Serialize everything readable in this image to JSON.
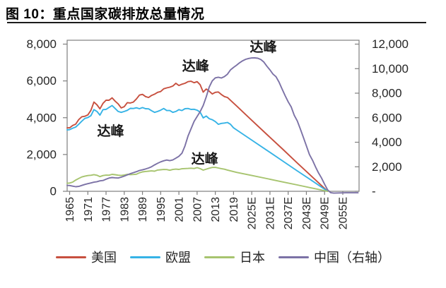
{
  "figure": {
    "title": "图 10：重点国家碳排放总量情况"
  },
  "chart_data": {
    "type": "line",
    "title": "图 10：重点国家碳排放总量情况",
    "grid": false,
    "legend_position": "bottom",
    "frame_color": "#7f7f7f",
    "tick_text_color": "#262626",
    "annotation_color": "#1a1a1a",
    "x_axis": {
      "labels": [
        "1965",
        "1971",
        "1977",
        "1983",
        "1989",
        "1995",
        "2001",
        "2007",
        "2013",
        "2019",
        "2025E",
        "2031E",
        "2037E",
        "2043E",
        "2049E",
        "2055E"
      ],
      "years": [
        1965,
        1971,
        1977,
        1983,
        1989,
        1995,
        2001,
        2007,
        2013,
        2019,
        2025,
        2031,
        2037,
        2043,
        2049,
        2055
      ]
    },
    "left_axis": {
      "min": 0,
      "max": 8000,
      "labels": [
        "8,000",
        "6,000",
        "4,000",
        "2,000",
        "0"
      ],
      "values": [
        8000,
        6000,
        4000,
        2000,
        0
      ]
    },
    "right_axis": {
      "min": 0,
      "max": 12000,
      "labels": [
        "12,000",
        "10,000",
        "8,000",
        "6,000",
        "4,000",
        "2,000",
        "-"
      ],
      "values": [
        12000,
        10000,
        8000,
        6000,
        4000,
        2000,
        0
      ]
    },
    "series": [
      {
        "name": "美国",
        "axis": "left",
        "color": "#c7503f",
        "points": [
          [
            1964,
            3450
          ],
          [
            1965,
            3450
          ],
          [
            1966,
            3580
          ],
          [
            1967,
            3650
          ],
          [
            1968,
            3900
          ],
          [
            1969,
            4050
          ],
          [
            1970,
            4080
          ],
          [
            1971,
            4150
          ],
          [
            1972,
            4400
          ],
          [
            1973,
            4850
          ],
          [
            1974,
            4700
          ],
          [
            1975,
            4480
          ],
          [
            1976,
            4780
          ],
          [
            1977,
            4950
          ],
          [
            1978,
            4950
          ],
          [
            1979,
            5080
          ],
          [
            1980,
            4900
          ],
          [
            1981,
            4750
          ],
          [
            1982,
            4530
          ],
          [
            1983,
            4600
          ],
          [
            1984,
            4820
          ],
          [
            1985,
            4800
          ],
          [
            1986,
            4850
          ],
          [
            1987,
            5020
          ],
          [
            1988,
            5230
          ],
          [
            1989,
            5270
          ],
          [
            1990,
            5150
          ],
          [
            1991,
            5100
          ],
          [
            1992,
            5210
          ],
          [
            1993,
            5280
          ],
          [
            1994,
            5380
          ],
          [
            1995,
            5420
          ],
          [
            1996,
            5570
          ],
          [
            1997,
            5620
          ],
          [
            1998,
            5660
          ],
          [
            1999,
            5720
          ],
          [
            2000,
            5870
          ],
          [
            2001,
            5750
          ],
          [
            2002,
            5820
          ],
          [
            2003,
            5870
          ],
          [
            2004,
            5960
          ],
          [
            2005,
            5980
          ],
          [
            2006,
            5900
          ],
          [
            2007,
            5960
          ],
          [
            2008,
            5790
          ],
          [
            2009,
            5390
          ],
          [
            2010,
            5560
          ],
          [
            2011,
            5440
          ],
          [
            2012,
            5290
          ],
          [
            2013,
            5380
          ],
          [
            2014,
            5400
          ],
          [
            2015,
            5260
          ],
          [
            2016,
            5150
          ],
          [
            2017,
            5100
          ],
          [
            2020,
            4640
          ],
          [
            2025,
            3860
          ],
          [
            2030,
            3090
          ],
          [
            2035,
            2320
          ],
          [
            2040,
            1540
          ],
          [
            2045,
            770
          ],
          [
            2050,
            0
          ]
        ]
      },
      {
        "name": "欧盟",
        "axis": "left",
        "color": "#36b3e6",
        "points": [
          [
            1964,
            3340
          ],
          [
            1965,
            3350
          ],
          [
            1966,
            3430
          ],
          [
            1967,
            3490
          ],
          [
            1968,
            3640
          ],
          [
            1969,
            3810
          ],
          [
            1970,
            3960
          ],
          [
            1971,
            4010
          ],
          [
            1972,
            4110
          ],
          [
            1973,
            4440
          ],
          [
            1974,
            4340
          ],
          [
            1975,
            4140
          ],
          [
            1976,
            4440
          ],
          [
            1977,
            4450
          ],
          [
            1978,
            4560
          ],
          [
            1979,
            4660
          ],
          [
            1980,
            4500
          ],
          [
            1981,
            4340
          ],
          [
            1982,
            4290
          ],
          [
            1983,
            4340
          ],
          [
            1984,
            4400
          ],
          [
            1985,
            4510
          ],
          [
            1986,
            4500
          ],
          [
            1987,
            4540
          ],
          [
            1988,
            4490
          ],
          [
            1989,
            4550
          ],
          [
            1990,
            4490
          ],
          [
            1991,
            4480
          ],
          [
            1992,
            4380
          ],
          [
            1993,
            4290
          ],
          [
            1994,
            4340
          ],
          [
            1995,
            4410
          ],
          [
            1996,
            4500
          ],
          [
            1997,
            4390
          ],
          [
            1998,
            4390
          ],
          [
            1999,
            4290
          ],
          [
            2000,
            4340
          ],
          [
            2001,
            4440
          ],
          [
            2002,
            4390
          ],
          [
            2003,
            4490
          ],
          [
            2004,
            4500
          ],
          [
            2005,
            4450
          ],
          [
            2006,
            4460
          ],
          [
            2007,
            4410
          ],
          [
            2008,
            4300
          ],
          [
            2009,
            3990
          ],
          [
            2010,
            4090
          ],
          [
            2011,
            3950
          ],
          [
            2012,
            3890
          ],
          [
            2013,
            3790
          ],
          [
            2014,
            3640
          ],
          [
            2015,
            3690
          ],
          [
            2016,
            3710
          ],
          [
            2017,
            3740
          ],
          [
            2018,
            3640
          ],
          [
            2019,
            3450
          ],
          [
            2020,
            3340
          ],
          [
            2025,
            2780
          ],
          [
            2030,
            2230
          ],
          [
            2035,
            1670
          ],
          [
            2040,
            1110
          ],
          [
            2045,
            560
          ],
          [
            2050,
            0
          ]
        ]
      },
      {
        "name": "日本",
        "axis": "left",
        "color": "#a7c46f",
        "points": [
          [
            1964,
            440
          ],
          [
            1965,
            450
          ],
          [
            1966,
            500
          ],
          [
            1967,
            610
          ],
          [
            1968,
            700
          ],
          [
            1969,
            780
          ],
          [
            1970,
            820
          ],
          [
            1971,
            855
          ],
          [
            1972,
            870
          ],
          [
            1973,
            905
          ],
          [
            1974,
            870
          ],
          [
            1975,
            800
          ],
          [
            1976,
            855
          ],
          [
            1977,
            880
          ],
          [
            1978,
            875
          ],
          [
            1979,
            920
          ],
          [
            1980,
            900
          ],
          [
            1981,
            875
          ],
          [
            1982,
            860
          ],
          [
            1983,
            885
          ],
          [
            1984,
            920
          ],
          [
            1985,
            905
          ],
          [
            1986,
            915
          ],
          [
            1987,
            930
          ],
          [
            1988,
            1005
          ],
          [
            1989,
            1055
          ],
          [
            1990,
            1080
          ],
          [
            1991,
            1095
          ],
          [
            1992,
            1110
          ],
          [
            1993,
            1095
          ],
          [
            1994,
            1155
          ],
          [
            1995,
            1170
          ],
          [
            1996,
            1185
          ],
          [
            1997,
            1180
          ],
          [
            1998,
            1145
          ],
          [
            1999,
            1185
          ],
          [
            2000,
            1205
          ],
          [
            2001,
            1190
          ],
          [
            2002,
            1225
          ],
          [
            2003,
            1235
          ],
          [
            2004,
            1245
          ],
          [
            2005,
            1255
          ],
          [
            2006,
            1240
          ],
          [
            2007,
            1285
          ],
          [
            2008,
            1230
          ],
          [
            2009,
            1150
          ],
          [
            2010,
            1205
          ],
          [
            2011,
            1255
          ],
          [
            2012,
            1295
          ],
          [
            2013,
            1300
          ],
          [
            2014,
            1265
          ],
          [
            2015,
            1230
          ],
          [
            2016,
            1200
          ],
          [
            2017,
            1155
          ],
          [
            2020,
            1030
          ],
          [
            2025,
            860
          ],
          [
            2030,
            690
          ],
          [
            2035,
            515
          ],
          [
            2040,
            345
          ],
          [
            2045,
            170
          ],
          [
            2050,
            0
          ]
        ]
      },
      {
        "name": "中国（右轴）",
        "axis": "right",
        "color": "#7c72a6",
        "points": [
          [
            1964,
            480
          ],
          [
            1965,
            470
          ],
          [
            1966,
            420
          ],
          [
            1967,
            375
          ],
          [
            1968,
            400
          ],
          [
            1969,
            480
          ],
          [
            1970,
            560
          ],
          [
            1971,
            620
          ],
          [
            1972,
            680
          ],
          [
            1973,
            740
          ],
          [
            1974,
            780
          ],
          [
            1975,
            850
          ],
          [
            1976,
            880
          ],
          [
            1977,
            985
          ],
          [
            1978,
            1080
          ],
          [
            1979,
            1120
          ],
          [
            1980,
            1100
          ],
          [
            1981,
            1080
          ],
          [
            1982,
            1150
          ],
          [
            1983,
            1235
          ],
          [
            1984,
            1335
          ],
          [
            1985,
            1440
          ],
          [
            1986,
            1520
          ],
          [
            1987,
            1600
          ],
          [
            1988,
            1700
          ],
          [
            1989,
            1750
          ],
          [
            1990,
            1820
          ],
          [
            1991,
            1900
          ],
          [
            1992,
            2005
          ],
          [
            1993,
            2150
          ],
          [
            1994,
            2285
          ],
          [
            1995,
            2400
          ],
          [
            1996,
            2485
          ],
          [
            1997,
            2550
          ],
          [
            1998,
            2500
          ],
          [
            1999,
            2555
          ],
          [
            2000,
            2700
          ],
          [
            2001,
            2855
          ],
          [
            2002,
            3100
          ],
          [
            2003,
            3700
          ],
          [
            2004,
            4500
          ],
          [
            2005,
            5100
          ],
          [
            2006,
            5700
          ],
          [
            2007,
            6100
          ],
          [
            2008,
            6500
          ],
          [
            2009,
            7000
          ],
          [
            2010,
            7700
          ],
          [
            2011,
            8500
          ],
          [
            2012,
            9000
          ],
          [
            2013,
            9250
          ],
          [
            2014,
            9300
          ],
          [
            2015,
            9240
          ],
          [
            2016,
            9350
          ],
          [
            2017,
            9550
          ],
          [
            2018,
            9900
          ],
          [
            2019,
            10100
          ],
          [
            2020,
            10280
          ],
          [
            2021,
            10480
          ],
          [
            2022,
            10640
          ],
          [
            2023,
            10760
          ],
          [
            2024,
            10830
          ],
          [
            2025,
            10870
          ],
          [
            2026,
            10880
          ],
          [
            2027,
            10850
          ],
          [
            2028,
            10740
          ],
          [
            2029,
            10540
          ],
          [
            2030,
            10200
          ],
          [
            2031,
            9900
          ],
          [
            2032,
            9560
          ],
          [
            2033,
            9340
          ],
          [
            2034,
            8900
          ],
          [
            2035,
            8340
          ],
          [
            2036,
            7800
          ],
          [
            2037,
            7300
          ],
          [
            2038,
            6880
          ],
          [
            2039,
            6200
          ],
          [
            2040,
            5740
          ],
          [
            2041,
            5080
          ],
          [
            2042,
            4400
          ],
          [
            2043,
            3700
          ],
          [
            2044,
            3000
          ],
          [
            2045,
            2540
          ],
          [
            2046,
            1990
          ],
          [
            2047,
            1500
          ],
          [
            2048,
            1080
          ],
          [
            2049,
            580
          ],
          [
            2050,
            120
          ],
          [
            2051,
            -110
          ],
          [
            2052,
            -150
          ],
          [
            2054,
            -130
          ],
          [
            2056,
            -120
          ],
          [
            2058,
            -120
          ],
          [
            2060,
            -120
          ]
        ]
      }
    ],
    "annotations": [
      {
        "label": "达峰",
        "axis": "left",
        "year": 1978.5,
        "value": 3250
      },
      {
        "label": "达峰",
        "axis": "left",
        "year": 2006.5,
        "value": 6780
      },
      {
        "label": "达峰",
        "axis": "right",
        "year": 2028.8,
        "value": 11720
      },
      {
        "label": "达峰",
        "axis": "left",
        "year": 2009.5,
        "value": 1730
      }
    ]
  }
}
